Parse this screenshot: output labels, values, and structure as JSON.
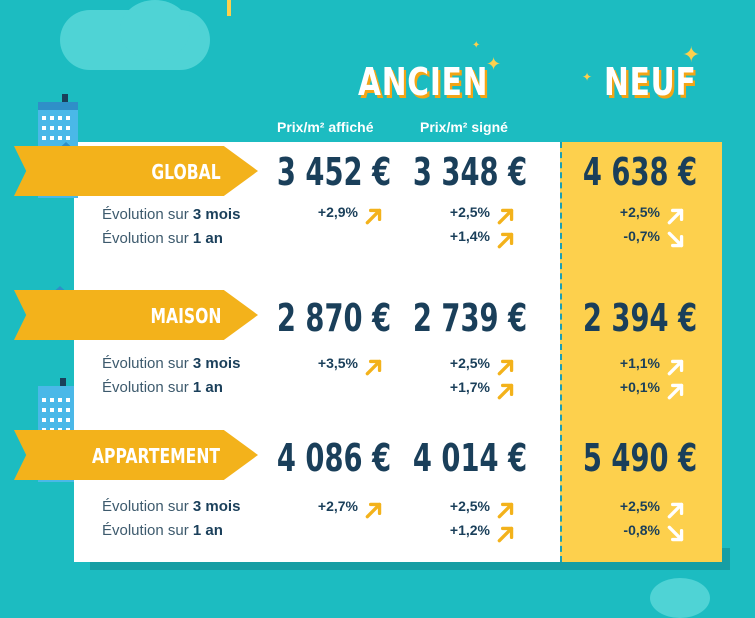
{
  "headers": {
    "ancien": "ANCIEN",
    "neuf": "NEUF",
    "col_affiche": "Prix/m² affiché",
    "col_signe": "Prix/m² signé"
  },
  "rows": [
    {
      "label": "GLOBAL",
      "affiche": "3 452 €",
      "signe": "3 348 €",
      "neuf": "4 638 €",
      "evol_3m_prefix": "Évolution sur ",
      "evol_3m_bold": "3 mois",
      "evol_1a_prefix": "Évolution sur ",
      "evol_1a_bold": "1 an",
      "affiche_3m": "+2,9%",
      "signe_3m": "+2,5%",
      "signe_1a": "+1,4%",
      "neuf_3m": "+2,5%",
      "neuf_1a": "-0,7%"
    },
    {
      "label": "MAISON",
      "affiche": "2 870 €",
      "signe": "2 739 €",
      "neuf": "2 394 €",
      "evol_3m_prefix": "Évolution sur ",
      "evol_3m_bold": "3 mois",
      "evol_1a_prefix": "Évolution sur ",
      "evol_1a_bold": "1 an",
      "affiche_3m": "+3,5%",
      "signe_3m": "+2,5%",
      "signe_1a": "+1,7%",
      "neuf_3m": "+1,1%",
      "neuf_1a": "+0,1%"
    },
    {
      "label": "APPARTEMENT",
      "affiche": "4 086 €",
      "signe": "4 014 €",
      "neuf": "5 490 €",
      "evol_3m_prefix": "Évolution sur ",
      "evol_3m_bold": "3 mois",
      "evol_1a_prefix": "Évolution sur ",
      "evol_1a_bold": "1 an",
      "affiche_3m": "+2,7%",
      "signe_3m": "+2,5%",
      "signe_1a": "+1,2%",
      "neuf_3m": "+2,5%",
      "neuf_1a": "-0,8%"
    }
  ],
  "colors": {
    "background": "#1cbcc1",
    "ribbon": "#f3b21b",
    "neuf_panel": "#fdd04d",
    "text_dark": "#1a3f5a",
    "arrow_panel": "#f3b21b",
    "arrow_neuf": "#ffffff"
  }
}
